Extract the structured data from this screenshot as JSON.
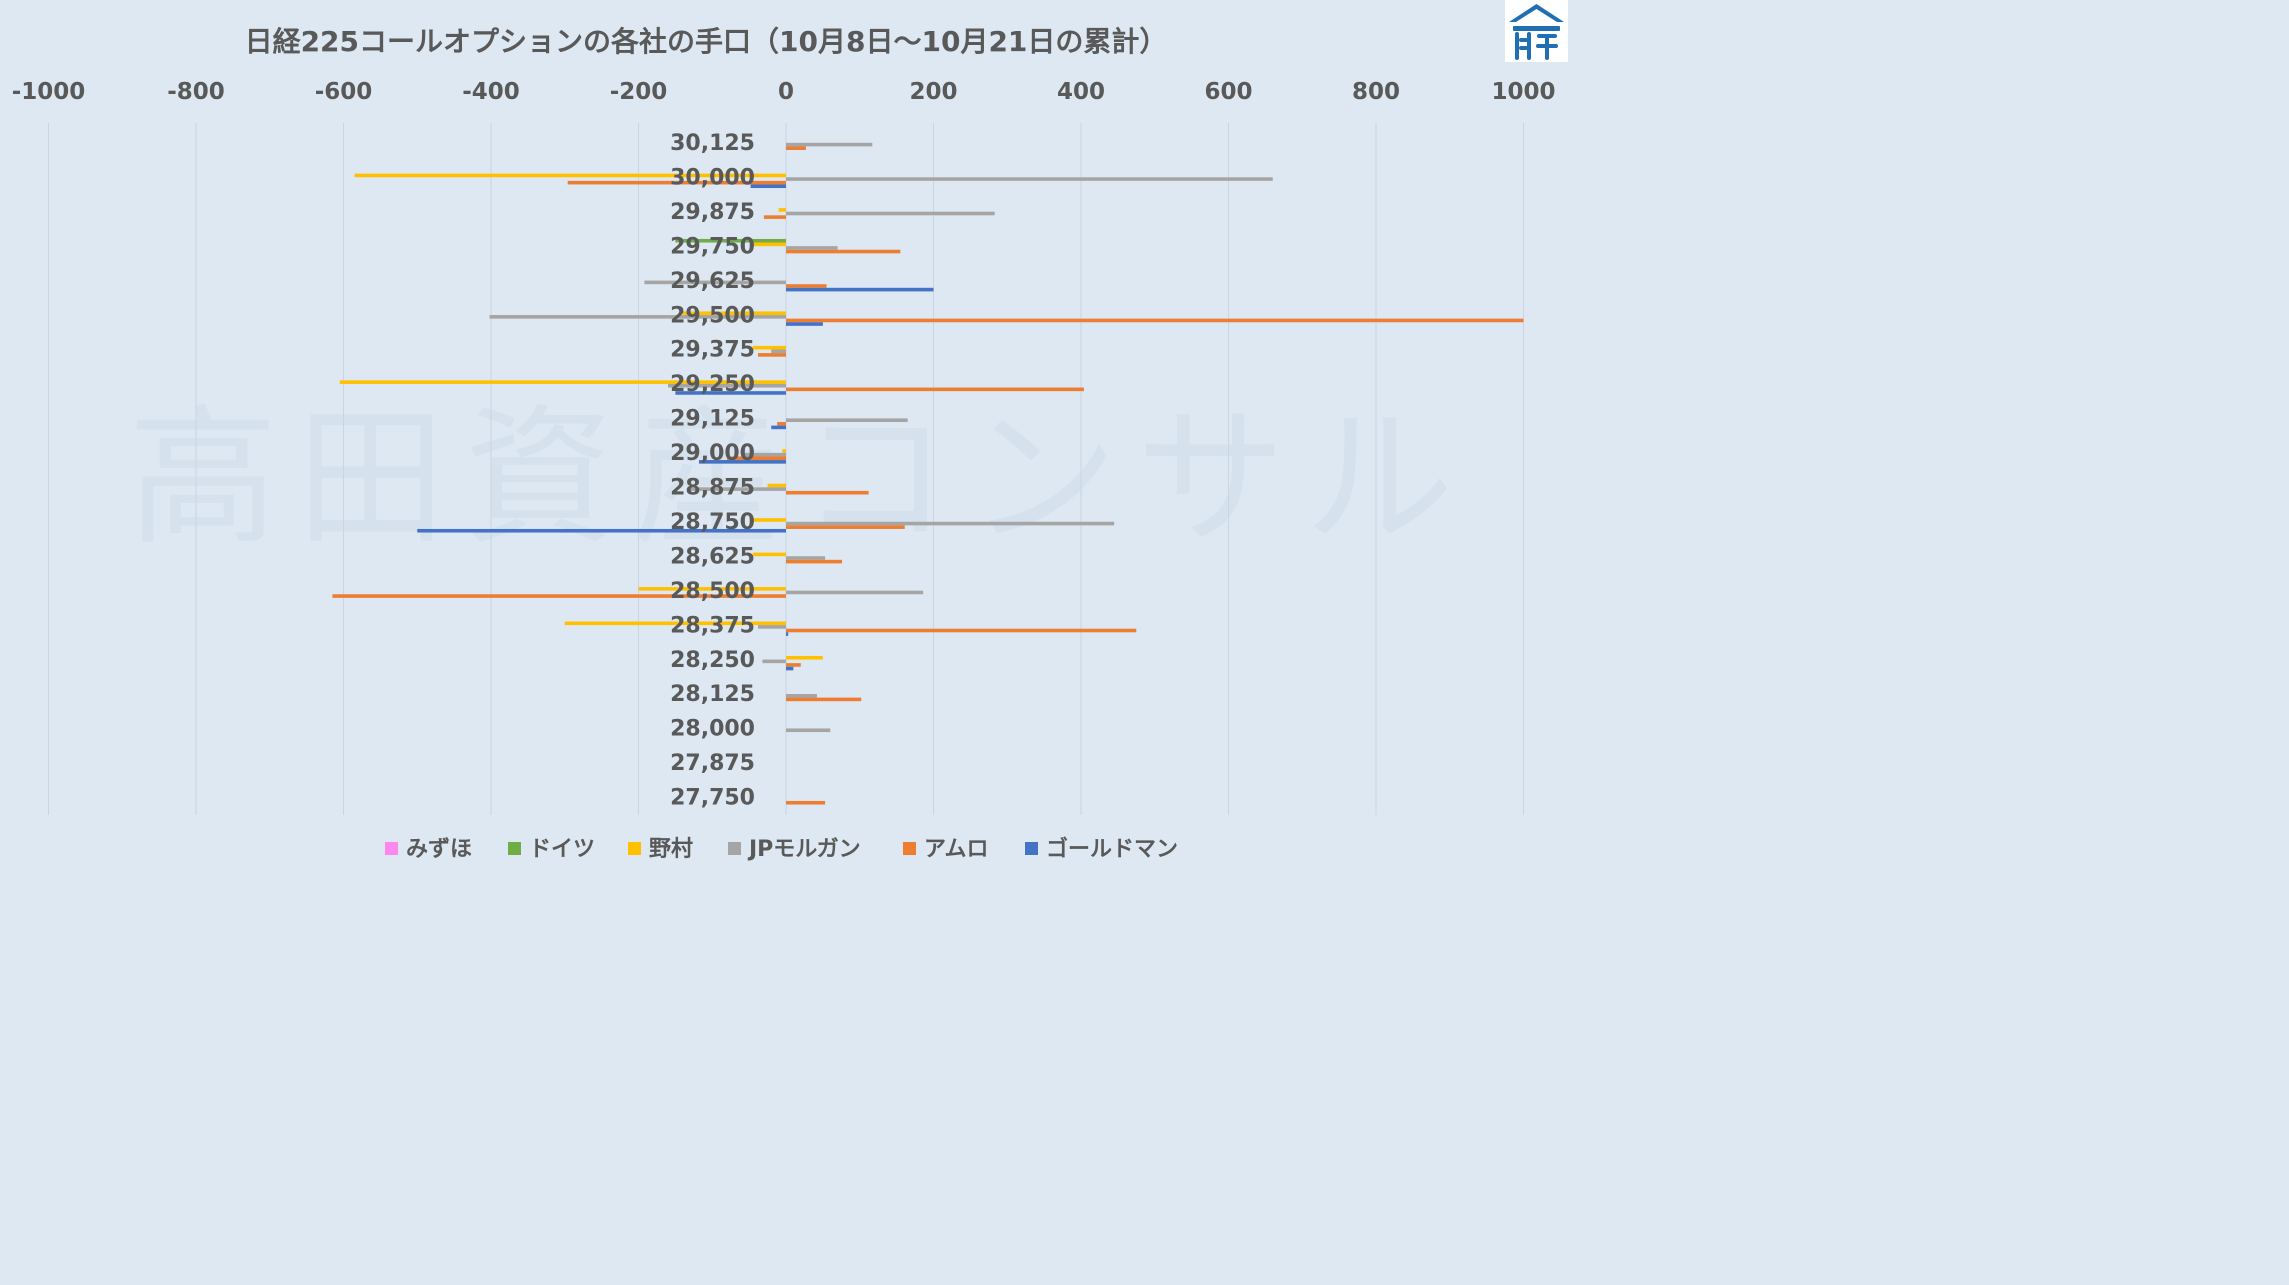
{
  "colors": {
    "background": "#dde8f3",
    "grid": "#c9d5e0",
    "text": "#595959",
    "watermark": "#d5e1ec",
    "logo_blue": "#1f6fb2"
  },
  "logo": {
    "icon": "takada-logo-icon"
  },
  "watermark": "高田資産コンサル",
  "chart_data": {
    "type": "bar",
    "orientation": "horizontal",
    "title": "日経225コールオプションの各社の手口（10月8日～10月21日の累計）",
    "xlim": [
      -1000,
      1000
    ],
    "x_ticks": [
      -1000,
      -800,
      -600,
      -400,
      -200,
      0,
      200,
      400,
      600,
      800,
      1000
    ],
    "x_tick_labels": [
      "-1000",
      "-800",
      "-600",
      "-400",
      "-200",
      "0",
      "200",
      "400",
      "600",
      "800",
      "1000"
    ],
    "grid": true,
    "legend_position": "bottom",
    "categories": [
      "30,125",
      "30,000",
      "29,875",
      "29,750",
      "29,625",
      "29,500",
      "29,375",
      "29,250",
      "29,125",
      "29,000",
      "28,875",
      "28,750",
      "28,625",
      "28,500",
      "28,375",
      "28,250",
      "28,125",
      "28,000",
      "27,875",
      "27,750"
    ],
    "series": [
      {
        "name": "みずほ",
        "color": "#ff88ee",
        "values": [
          0,
          0,
          0,
          0,
          0,
          0,
          0,
          0,
          0,
          0,
          0,
          0,
          0,
          0,
          0,
          0,
          0,
          0,
          0,
          0
        ]
      },
      {
        "name": "ドイツ",
        "color": "#70ad47",
        "values": [
          0,
          0,
          0,
          -150,
          0,
          0,
          0,
          0,
          0,
          0,
          0,
          0,
          0,
          0,
          0,
          0,
          0,
          0,
          0,
          0
        ]
      },
      {
        "name": "野村",
        "color": "#ffc000",
        "values": [
          0,
          -585,
          -10,
          -45,
          0,
          -140,
          -45,
          -605,
          0,
          -5,
          -25,
          -45,
          -45,
          -200,
          -300,
          50,
          0,
          0,
          0,
          0
        ]
      },
      {
        "name": "JPモルガン",
        "color": "#a5a5a5",
        "values": [
          117,
          660,
          283,
          70,
          -192,
          -402,
          -20,
          -160,
          165,
          -60,
          -130,
          445,
          53,
          186,
          -38,
          -32,
          42,
          60,
          0,
          0
        ]
      },
      {
        "name": "アムロ",
        "color": "#ed7d31",
        "values": [
          27,
          -296,
          -30,
          155,
          55,
          1000,
          -38,
          404,
          -12,
          -80,
          112,
          161,
          76,
          -615,
          475,
          20,
          102,
          0,
          0,
          53
        ]
      },
      {
        "name": "ゴールドマン",
        "color": "#4472c4",
        "values": [
          0,
          -48,
          0,
          0,
          200,
          50,
          0,
          -150,
          -20,
          -118,
          0,
          -500,
          0,
          0,
          3,
          10,
          0,
          0,
          0,
          0
        ]
      }
    ]
  }
}
